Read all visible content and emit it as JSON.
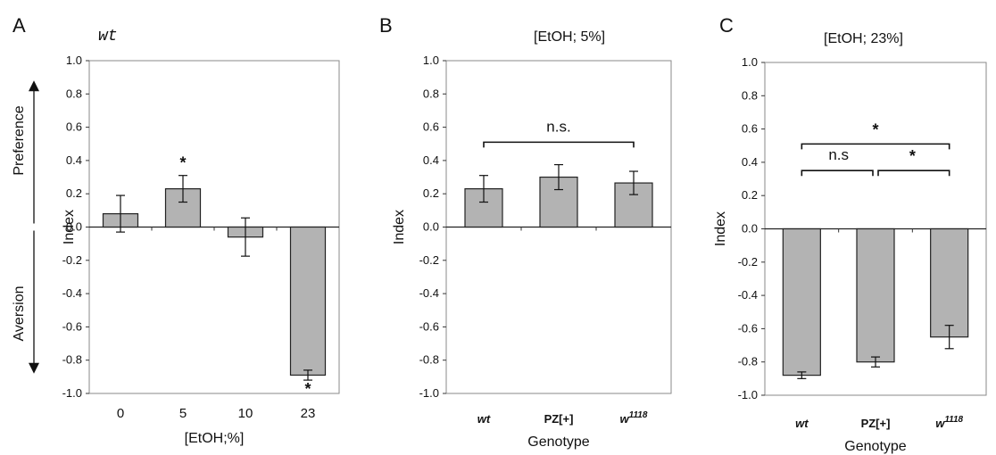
{
  "chart_data": [
    {
      "panel": "A",
      "type": "bar",
      "title": "wt",
      "xlabel": "[EtOH;%]",
      "ylabel": "Index",
      "side_labels": {
        "upper": "Preference",
        "lower": "Aversion"
      },
      "ylim": [
        -1.0,
        1.0
      ],
      "yticks": [
        "1.0",
        "0.8",
        "0.6",
        "0.4",
        "0.2",
        "0.0",
        "-0.2",
        "-0.4",
        "-0.6",
        "-0.8",
        "-1.0"
      ],
      "categories": [
        "0",
        "5",
        "10",
        "23"
      ],
      "values": [
        0.08,
        0.23,
        -0.06,
        -0.89
      ],
      "errors": [
        0.11,
        0.08,
        0.115,
        0.03
      ],
      "annotations": [
        {
          "text": "*",
          "bar": 1
        },
        {
          "text": "*",
          "bar": 3
        }
      ],
      "bar_color": "#b3b3b3",
      "grid": false
    },
    {
      "panel": "B",
      "type": "bar",
      "title": "[EtOH; 5%]",
      "xlabel": "Genotype",
      "ylabel": "Index",
      "ylim": [
        -1.0,
        1.0
      ],
      "yticks": [
        "1.0",
        "0.8",
        "0.6",
        "0.4",
        "0.2",
        "0.0",
        "-0.2",
        "-0.4",
        "-0.6",
        "-0.8",
        "-1.0"
      ],
      "categories": [
        "wt",
        "PZ[+]",
        "w1118"
      ],
      "values": [
        0.23,
        0.3,
        0.265
      ],
      "errors": [
        0.08,
        0.075,
        0.07
      ],
      "brackets": [
        {
          "from": 0,
          "to": 2,
          "y": 0.51,
          "text": "n.s."
        }
      ],
      "bar_color": "#b3b3b3",
      "grid": false
    },
    {
      "panel": "C",
      "type": "bar",
      "title": "[EtOH; 23%]",
      "xlabel": "Genotype",
      "ylabel": "Index",
      "ylim": [
        -1.0,
        1.0
      ],
      "yticks": [
        "1.0",
        "0.8",
        "0.6",
        "0.4",
        "0.2",
        "0.0",
        "-0.2",
        "-0.4",
        "-0.6",
        "-0.8",
        "-1.0"
      ],
      "categories": [
        "wt",
        "PZ[+]",
        "w1118"
      ],
      "values": [
        -0.88,
        -0.8,
        -0.65
      ],
      "errors": [
        0.02,
        0.03,
        0.07
      ],
      "brackets": [
        {
          "from": 0,
          "to": 2,
          "y": 0.51,
          "text": "*"
        },
        {
          "from": 0,
          "to": 1,
          "y": 0.35,
          "text": "n.s"
        },
        {
          "from": 1,
          "to": 2,
          "y": 0.35,
          "text": "*"
        }
      ],
      "bar_color": "#b3b3b3",
      "grid": false
    }
  ]
}
